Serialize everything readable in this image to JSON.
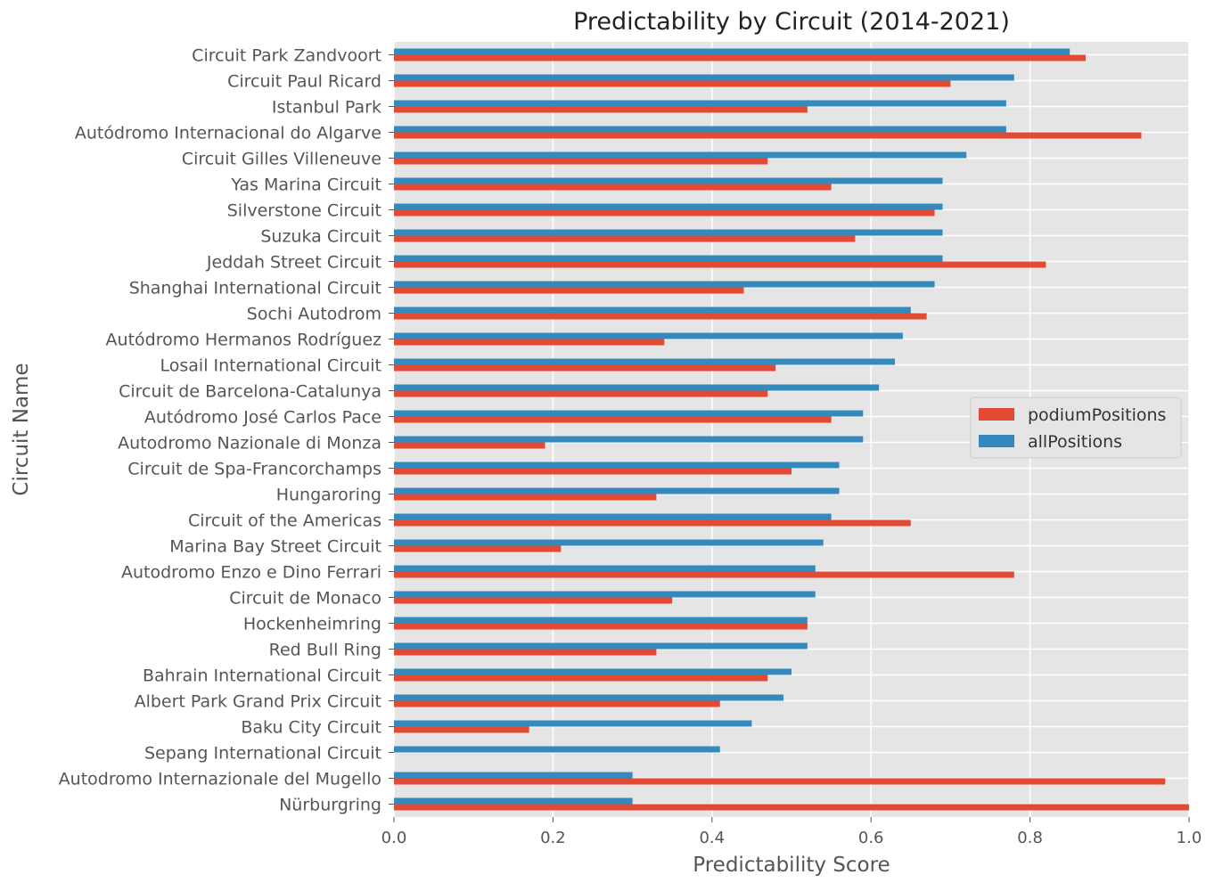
{
  "chart_data": {
    "type": "bar",
    "orientation": "horizontal",
    "title": "Predictability by Circuit (2014-2021)",
    "xlabel": "Predictability Score",
    "ylabel": "Circuit Name",
    "xlim": [
      0,
      1.0
    ],
    "xticks": [
      "0.0",
      "0.2",
      "0.4",
      "0.6",
      "0.8",
      "1.0"
    ],
    "grid": true,
    "legend_position": "center-right",
    "colors": {
      "podiumPositions": "#E24A33",
      "allPositions": "#348ABD",
      "panel": "#E5E5E5",
      "grid": "#FFFFFF",
      "text": "#555555"
    },
    "categories": [
      "Circuit Park Zandvoort",
      "Circuit Paul Ricard",
      "Istanbul Park",
      "Autódromo Internacional do Algarve",
      "Circuit Gilles Villeneuve",
      "Yas Marina Circuit",
      "Silverstone Circuit",
      "Suzuka Circuit",
      "Jeddah Street Circuit",
      "Shanghai International Circuit",
      "Sochi Autodrom",
      "Autódromo Hermanos Rodríguez",
      "Losail International Circuit",
      "Circuit de Barcelona-Catalunya",
      "Autódromo José Carlos Pace",
      "Autodromo Nazionale di Monza",
      "Circuit de Spa-Francorchamps",
      "Hungaroring",
      "Circuit of the Americas",
      "Marina Bay Street Circuit",
      "Autodromo Enzo e Dino Ferrari",
      "Circuit de Monaco",
      "Hockenheimring",
      "Red Bull Ring",
      "Bahrain International Circuit",
      "Albert Park Grand Prix Circuit",
      "Baku City Circuit",
      "Sepang International Circuit",
      "Autodromo Internazionale del Mugello",
      "Nürburgring"
    ],
    "series": [
      {
        "name": "podiumPositions",
        "values": [
          0.87,
          0.7,
          0.52,
          0.94,
          0.47,
          0.55,
          0.68,
          0.58,
          0.82,
          0.44,
          0.67,
          0.34,
          0.48,
          0.47,
          0.55,
          0.19,
          0.5,
          0.33,
          0.65,
          0.21,
          0.78,
          0.35,
          0.52,
          0.33,
          0.47,
          0.41,
          0.17,
          0.0,
          0.97,
          1.0
        ]
      },
      {
        "name": "allPositions",
        "values": [
          0.85,
          0.78,
          0.77,
          0.77,
          0.72,
          0.69,
          0.69,
          0.69,
          0.69,
          0.68,
          0.65,
          0.64,
          0.63,
          0.61,
          0.59,
          0.59,
          0.56,
          0.56,
          0.55,
          0.54,
          0.53,
          0.53,
          0.52,
          0.52,
          0.5,
          0.49,
          0.45,
          0.41,
          0.3,
          0.3
        ]
      }
    ]
  }
}
